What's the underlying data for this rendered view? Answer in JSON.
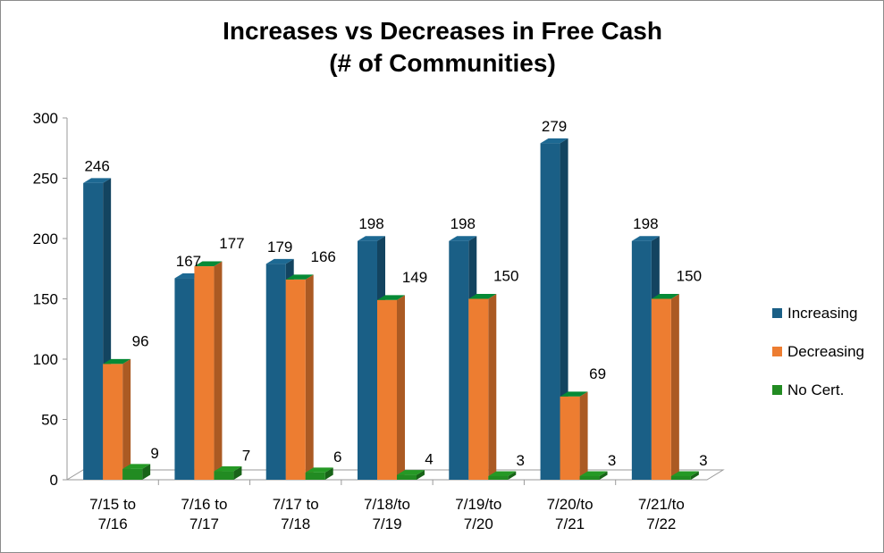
{
  "chart_data": {
    "type": "bar",
    "title": "Increases vs Decreases in Free Cash",
    "subtitle": "(# of Communities)",
    "categories": [
      "7/15 to\n7/16",
      "7/16 to\n7/17",
      "7/17 to\n7/18",
      "7/18/to\n7/19",
      "7/19/to\n7/20",
      "7/20/to\n7/21",
      "7/21/to\n7/22"
    ],
    "series": [
      {
        "name": "Increasing",
        "color": "#1a5f86",
        "values": [
          246,
          167,
          179,
          198,
          198,
          279,
          198
        ]
      },
      {
        "name": "Decreasing",
        "color": "#ed7d31",
        "values": [
          96,
          177,
          166,
          149,
          150,
          69,
          150
        ]
      },
      {
        "name": "No Cert.",
        "color": "#228b22",
        "values": [
          9,
          7,
          6,
          4,
          3,
          3,
          3
        ]
      }
    ],
    "ylim": [
      0,
      300
    ],
    "yticks": [
      0,
      50,
      100,
      150,
      200,
      250,
      300
    ],
    "xlabel": "",
    "ylabel": "",
    "grid": false,
    "legend_position": "right",
    "style": "3d-clustered-column"
  }
}
